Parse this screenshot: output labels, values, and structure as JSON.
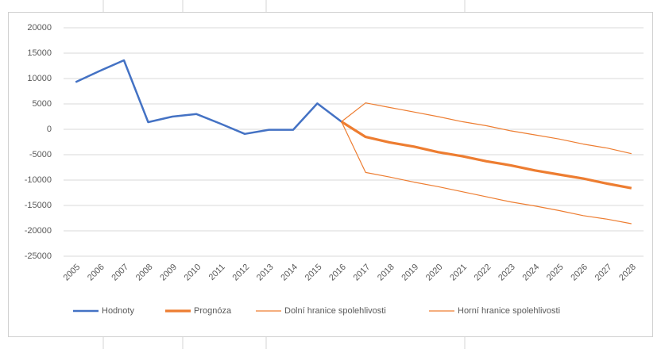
{
  "chart_data": {
    "type": "line",
    "categories": [
      "2005",
      "2006",
      "2007",
      "2008",
      "2009",
      "2010",
      "2011",
      "2012",
      "2013",
      "2014",
      "2015",
      "2016",
      "2017",
      "2018",
      "2019",
      "2020",
      "2021",
      "2022",
      "2023",
      "2024",
      "2025",
      "2026",
      "2027",
      "2028"
    ],
    "series": [
      {
        "name": "Hodnoty",
        "color": "#4472c4",
        "values": [
          9300,
          11500,
          13600,
          1400,
          2500,
          3000,
          1100,
          -900,
          -100,
          -100,
          5100,
          1500,
          null,
          null,
          null,
          null,
          null,
          null,
          null,
          null,
          null,
          null,
          null,
          null
        ]
      },
      {
        "name": "Prognóza",
        "color": "#ed7d31",
        "values": [
          null,
          null,
          null,
          null,
          null,
          null,
          null,
          null,
          null,
          null,
          null,
          1500,
          -1500,
          -2600,
          -3400,
          -4500,
          -5300,
          -6300,
          -7100,
          -8100,
          -8900,
          -9700,
          -10700,
          -11600
        ]
      },
      {
        "name": "Dolní hranice spolehlivosti",
        "color": "#ed7d31",
        "values": [
          null,
          null,
          null,
          null,
          null,
          null,
          null,
          null,
          null,
          null,
          null,
          1500,
          -8500,
          -9400,
          -10400,
          -11300,
          -12300,
          -13300,
          -14300,
          -15100,
          -16000,
          -17000,
          -17700,
          -18600
        ]
      },
      {
        "name": "Horní hranice spolehlivosti",
        "color": "#ed7d31",
        "values": [
          null,
          null,
          null,
          null,
          null,
          null,
          null,
          null,
          null,
          null,
          null,
          1500,
          5200,
          4300,
          3400,
          2500,
          1500,
          700,
          -300,
          -1100,
          -1900,
          -2900,
          -3700,
          -4800
        ]
      }
    ],
    "ylim": [
      -25000,
      20000
    ],
    "yticks": [
      -25000,
      -20000,
      -15000,
      -10000,
      -5000,
      0,
      5000,
      10000,
      15000,
      20000
    ],
    "grid": true,
    "legend": "bottom"
  }
}
